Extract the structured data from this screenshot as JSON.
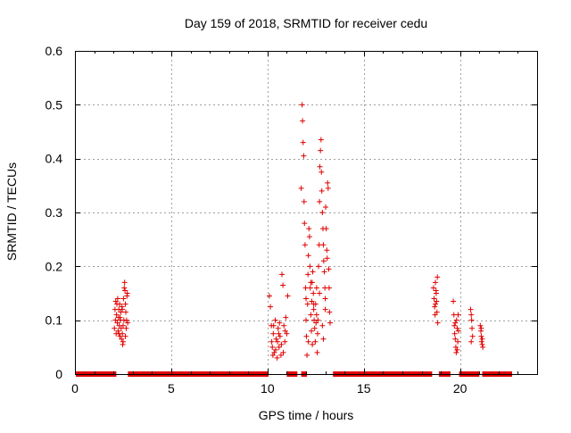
{
  "chart_data": {
    "type": "scatter",
    "title": "Day 159 of 2018, SRMTID for receiver cedu",
    "xlabel": "GPS time / hours",
    "ylabel": "SRMTID / TECUs",
    "xlim": [
      0,
      24
    ],
    "ylim": [
      0,
      0.6
    ],
    "grid": true,
    "marker": "+",
    "series": [
      {
        "name": "SRMTID",
        "color": "#e00000",
        "points": [
          [
            2.05,
            0.085
          ],
          [
            2.08,
            0.12
          ],
          [
            2.1,
            0.1
          ],
          [
            2.12,
            0.135
          ],
          [
            2.14,
            0.075
          ],
          [
            2.16,
            0.11
          ],
          [
            2.18,
            0.13
          ],
          [
            2.2,
            0.095
          ],
          [
            2.22,
            0.14
          ],
          [
            2.24,
            0.08
          ],
          [
            2.26,
            0.105
          ],
          [
            2.28,
            0.12
          ],
          [
            2.3,
            0.09
          ],
          [
            2.32,
            0.13
          ],
          [
            2.34,
            0.07
          ],
          [
            2.36,
            0.1
          ],
          [
            2.38,
            0.115
          ],
          [
            2.4,
            0.085
          ],
          [
            2.42,
            0.065
          ],
          [
            2.44,
            0.125
          ],
          [
            2.46,
            0.075
          ],
          [
            2.48,
            0.055
          ],
          [
            2.5,
            0.06
          ],
          [
            2.52,
            0.14
          ],
          [
            2.54,
            0.1
          ],
          [
            2.56,
            0.16
          ],
          [
            2.58,
            0.17
          ],
          [
            2.6,
            0.155
          ],
          [
            2.62,
            0.13
          ],
          [
            2.64,
            0.115
          ],
          [
            2.66,
            0.085
          ],
          [
            2.68,
            0.1
          ],
          [
            2.7,
            0.145
          ],
          [
            2.72,
            0.15
          ],
          [
            2.74,
            0.095
          ],
          [
            2.5,
            0.09
          ],
          [
            2.46,
            0.12
          ],
          [
            2.34,
            0.105
          ],
          [
            2.28,
            0.075
          ],
          [
            2.62,
            0.07
          ],
          [
            10.1,
            0.145
          ],
          [
            10.15,
            0.125
          ],
          [
            10.2,
            0.09
          ],
          [
            10.25,
            0.05
          ],
          [
            10.3,
            0.075
          ],
          [
            10.35,
            0.04
          ],
          [
            10.4,
            0.1
          ],
          [
            10.45,
            0.065
          ],
          [
            10.5,
            0.03
          ],
          [
            10.55,
            0.085
          ],
          [
            10.6,
            0.05
          ],
          [
            10.65,
            0.07
          ],
          [
            10.7,
            0.035
          ],
          [
            10.75,
            0.185
          ],
          [
            10.8,
            0.165
          ],
          [
            10.85,
            0.09
          ],
          [
            10.9,
            0.06
          ],
          [
            10.95,
            0.105
          ],
          [
            11.0,
            0.075
          ],
          [
            11.05,
            0.145
          ],
          [
            10.22,
            0.06
          ],
          [
            10.32,
            0.09
          ],
          [
            10.42,
            0.045
          ],
          [
            10.52,
            0.06
          ],
          [
            10.62,
            0.095
          ],
          [
            10.72,
            0.055
          ],
          [
            10.82,
            0.04
          ],
          [
            10.92,
            0.08
          ],
          [
            10.28,
            0.035
          ],
          [
            10.58,
            0.075
          ],
          [
            11.75,
            0.345
          ],
          [
            11.8,
            0.5
          ],
          [
            11.82,
            0.47
          ],
          [
            11.85,
            0.43
          ],
          [
            11.88,
            0.405
          ],
          [
            11.9,
            0.32
          ],
          [
            11.92,
            0.28
          ],
          [
            11.95,
            0.24
          ],
          [
            11.98,
            0.16
          ],
          [
            12.0,
            0.1
          ],
          [
            12.02,
            0.07
          ],
          [
            12.05,
            0.035
          ],
          [
            12.08,
            0.13
          ],
          [
            12.1,
            0.185
          ],
          [
            12.12,
            0.22
          ],
          [
            12.15,
            0.27
          ],
          [
            12.18,
            0.255
          ],
          [
            12.2,
            0.2
          ],
          [
            12.22,
            0.16
          ],
          [
            12.25,
            0.11
          ],
          [
            12.28,
            0.08
          ],
          [
            12.3,
            0.135
          ],
          [
            12.32,
            0.17
          ],
          [
            12.35,
            0.19
          ],
          [
            12.38,
            0.15
          ],
          [
            12.4,
            0.12
          ],
          [
            12.42,
            0.1
          ],
          [
            12.45,
            0.085
          ],
          [
            12.48,
            0.06
          ],
          [
            12.5,
            0.13
          ],
          [
            12.52,
            0.095
          ],
          [
            12.55,
            0.16
          ],
          [
            12.58,
            0.04
          ],
          [
            12.6,
            0.075
          ],
          [
            12.62,
            0.1
          ],
          [
            12.65,
            0.2
          ],
          [
            12.68,
            0.24
          ],
          [
            12.7,
            0.32
          ],
          [
            12.72,
            0.385
          ],
          [
            12.75,
            0.415
          ],
          [
            12.78,
            0.435
          ],
          [
            12.8,
            0.375
          ],
          [
            12.82,
            0.34
          ],
          [
            12.85,
            0.3
          ],
          [
            12.88,
            0.27
          ],
          [
            12.9,
            0.24
          ],
          [
            12.92,
            0.21
          ],
          [
            12.95,
            0.19
          ],
          [
            12.98,
            0.16
          ],
          [
            13.0,
            0.14
          ],
          [
            13.02,
            0.31
          ],
          [
            13.05,
            0.27
          ],
          [
            13.08,
            0.23
          ],
          [
            13.1,
            0.215
          ],
          [
            13.12,
            0.355
          ],
          [
            13.15,
            0.345
          ],
          [
            13.18,
            0.195
          ],
          [
            13.2,
            0.16
          ],
          [
            13.22,
            0.115
          ],
          [
            13.25,
            0.095
          ],
          [
            12.0,
            0.14
          ],
          [
            12.12,
            0.06
          ],
          [
            12.25,
            0.17
          ],
          [
            12.4,
            0.13
          ],
          [
            12.55,
            0.11
          ],
          [
            12.7,
            0.15
          ],
          [
            12.85,
            0.09
          ],
          [
            13.0,
            0.12
          ],
          [
            12.33,
            0.055
          ],
          [
            12.9,
            0.065
          ],
          [
            18.62,
            0.16
          ],
          [
            18.65,
            0.14
          ],
          [
            18.68,
            0.125
          ],
          [
            18.7,
            0.11
          ],
          [
            18.72,
            0.17
          ],
          [
            18.75,
            0.155
          ],
          [
            18.78,
            0.135
          ],
          [
            18.8,
            0.115
          ],
          [
            18.82,
            0.18
          ],
          [
            18.84,
            0.095
          ],
          [
            18.72,
            0.13
          ],
          [
            18.76,
            0.15
          ],
          [
            19.65,
            0.135
          ],
          [
            19.68,
            0.11
          ],
          [
            19.7,
            0.09
          ],
          [
            19.72,
            0.075
          ],
          [
            19.75,
            0.065
          ],
          [
            19.78,
            0.05
          ],
          [
            19.8,
            0.04
          ],
          [
            19.82,
            0.1
          ],
          [
            19.85,
            0.085
          ],
          [
            19.88,
            0.06
          ],
          [
            19.9,
            0.11
          ],
          [
            19.92,
            0.08
          ],
          [
            19.75,
            0.095
          ],
          [
            19.85,
            0.045
          ],
          [
            20.55,
            0.12
          ],
          [
            20.58,
            0.11
          ],
          [
            20.6,
            0.1
          ],
          [
            20.62,
            0.085
          ],
          [
            20.65,
            0.07
          ],
          [
            20.58,
            0.06
          ],
          [
            21.05,
            0.09
          ],
          [
            21.08,
            0.08
          ],
          [
            21.1,
            0.07
          ],
          [
            21.12,
            0.06
          ],
          [
            21.15,
            0.055
          ],
          [
            21.18,
            0.05
          ],
          [
            21.1,
            0.085
          ],
          [
            21.15,
            0.065
          ]
        ],
        "zero_segments": [
          [
            0.05,
            2.15
          ],
          [
            2.75,
            10.05
          ],
          [
            11.0,
            11.55
          ],
          [
            11.75,
            12.05
          ],
          [
            13.4,
            18.55
          ],
          [
            18.9,
            19.5
          ],
          [
            19.95,
            21.0
          ],
          [
            21.15,
            22.7
          ]
        ]
      }
    ]
  }
}
